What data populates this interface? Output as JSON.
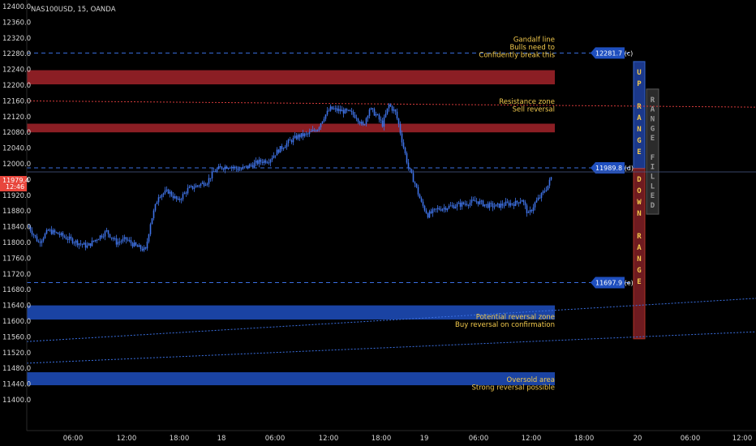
{
  "symbol_title": "NAS100USD, 15, OANDA",
  "price_badge": {
    "price": "11979.4",
    "time": "12:46"
  },
  "chart_data": {
    "type": "candlestick",
    "title": "NAS100USD, 15, OANDA",
    "y_ticks": [
      "12400.0",
      "12360.0",
      "12320.0",
      "12280.0",
      "12240.0",
      "12200.0",
      "12160.0",
      "12120.0",
      "12080.0",
      "12040.0",
      "12000.0",
      "11960.0",
      "11920.0",
      "11880.0",
      "11840.0",
      "11800.0",
      "11760.0",
      "11720.0",
      "11680.0",
      "11640.0",
      "11600.0",
      "11560.0",
      "11520.0",
      "11480.0",
      "11440.0",
      "11400.0"
    ],
    "ylim": [
      11380,
      12420
    ],
    "x_ticks": [
      "06:00",
      "12:00",
      "18:00",
      "18",
      "06:00",
      "12:00",
      "18:00",
      "19",
      "06:00",
      "12:00",
      "18:00",
      "20",
      "06:00",
      "12:00"
    ],
    "price_path": [
      [
        0,
        11840
      ],
      [
        6,
        11800
      ],
      [
        12,
        11830
      ],
      [
        18,
        11822
      ],
      [
        24,
        11810
      ],
      [
        30,
        11800
      ],
      [
        36,
        11790
      ],
      [
        42,
        11810
      ],
      [
        48,
        11828
      ],
      [
        54,
        11800
      ],
      [
        60,
        11808
      ],
      [
        66,
        11790
      ],
      [
        72,
        11780
      ],
      [
        75,
        11850
      ],
      [
        80,
        11920
      ],
      [
        86,
        11930
      ],
      [
        92,
        11905
      ],
      [
        98,
        11935
      ],
      [
        104,
        11945
      ],
      [
        110,
        11955
      ],
      [
        114,
        11980
      ],
      [
        118,
        11990
      ],
      [
        124,
        11995
      ],
      [
        130,
        11985
      ],
      [
        136,
        11995
      ],
      [
        142,
        12005
      ],
      [
        148,
        12010
      ],
      [
        154,
        12035
      ],
      [
        160,
        12055
      ],
      [
        166,
        12070
      ],
      [
        172,
        12075
      ],
      [
        178,
        12090
      ],
      [
        182,
        12120
      ],
      [
        186,
        12140
      ],
      [
        192,
        12135
      ],
      [
        198,
        12130
      ],
      [
        202,
        12120
      ],
      [
        206,
        12095
      ],
      [
        210,
        12140
      ],
      [
        214,
        12125
      ],
      [
        218,
        12100
      ],
      [
        222,
        12150
      ],
      [
        226,
        12130
      ],
      [
        228,
        12100
      ],
      [
        230,
        12060
      ],
      [
        234,
        11990
      ],
      [
        238,
        11950
      ],
      [
        242,
        11900
      ],
      [
        246,
        11870
      ],
      [
        252,
        11885
      ],
      [
        258,
        11890
      ],
      [
        264,
        11895
      ],
      [
        270,
        11900
      ],
      [
        276,
        11905
      ],
      [
        282,
        11895
      ],
      [
        288,
        11892
      ],
      [
        294,
        11898
      ],
      [
        300,
        11900
      ],
      [
        304,
        11910
      ],
      [
        308,
        11870
      ],
      [
        312,
        11900
      ],
      [
        316,
        11920
      ],
      [
        320,
        11945
      ],
      [
        323,
        11975
      ]
    ],
    "levels": [
      {
        "value": 12281.7,
        "label": "12281.7 (c)"
      },
      {
        "value": 11989.8,
        "label": "11989.8 (d)"
      },
      {
        "value": 11697.9,
        "label": "11697.9 (e)"
      }
    ],
    "zones": [
      {
        "from": 12202,
        "to": 12238,
        "color": "#a3232a"
      },
      {
        "from": 12080,
        "to": 12102,
        "color": "#a3232a"
      },
      {
        "from": 11604,
        "to": 11640,
        "color": "#1f4fbf"
      },
      {
        "from": 11437,
        "to": 11470,
        "color": "#1f4fbf"
      }
    ],
    "trend_lines": [
      {
        "color": "#d33a3a",
        "from": [
          0,
          12160
        ],
        "to": [
          460,
          12143
        ]
      },
      {
        "color": "#3a6fe0",
        "from": [
          0,
          11548
        ],
        "to": [
          460,
          11665
        ]
      },
      {
        "color": "#3a6fe0",
        "from": [
          0,
          11493
        ],
        "to": [
          460,
          11578
        ]
      }
    ],
    "annotations": [
      {
        "lines": [
          "Gandalf line",
          "Bulls need to",
          "Confidently break this"
        ],
        "value": 12290
      },
      {
        "lines": [
          "Resistance zone",
          "Sell reversal"
        ],
        "value": 12132
      },
      {
        "lines": [
          "Potential reversal zone",
          "Buy reversal on confirmation"
        ],
        "value": 11585
      },
      {
        "lines": [
          "Oversold area",
          "Strong reversal possible"
        ],
        "value": 11425
      }
    ],
    "range_boxes": {
      "up": {
        "from": 11988,
        "to": 12260,
        "text": "UP RANGE",
        "color": "#1f3f9a"
      },
      "down": {
        "from": 11555,
        "to": 11988,
        "text": "DOWN RANGE",
        "color": "#7a1f24"
      },
      "filled": {
        "from": 11872,
        "to": 12190,
        "text": "RANGE FILLED",
        "color": "#3a3a3a"
      }
    },
    "current_price_line": 11979.4,
    "colors": {
      "candle": "#3f73e6",
      "axis_text": "#d6d6d6",
      "annotation": "#f2c94c",
      "label_bg": "#1f4fbf",
      "badge_bg": "#e8463c"
    }
  }
}
